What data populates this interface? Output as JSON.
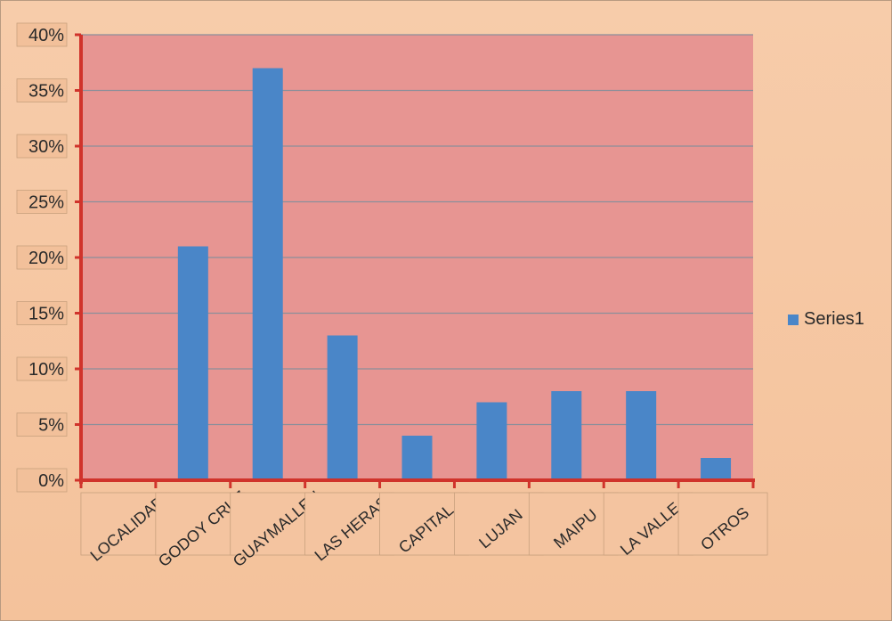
{
  "chart_data": {
    "type": "bar",
    "categories": [
      "LOCALIDAD",
      "GODOY CRUZ",
      "GUAYMALLEN",
      "LAS HERAS",
      "CAPITAL",
      "LUJAN",
      "MAIPU",
      "LA VALLE",
      "OTROS"
    ],
    "series": [
      {
        "name": "Series1",
        "values": [
          0,
          21,
          37,
          13,
          4,
          7,
          8,
          8,
          2
        ]
      }
    ],
    "value_unit": "percent",
    "ylim": [
      0,
      40
    ],
    "yticks": [
      0,
      5,
      10,
      15,
      20,
      25,
      30,
      35,
      40
    ],
    "ytick_labels": [
      "0%",
      "5%",
      "10%",
      "15%",
      "20%",
      "25%",
      "30%",
      "35%",
      "40%"
    ],
    "grid": true,
    "legend": "right",
    "title": "",
    "xlabel": "",
    "ylabel": "",
    "colors": {
      "bar": "#4a86c8",
      "plot_background": "#e79592",
      "axis": "#d0332b",
      "gridline": "#8a8f9a",
      "page_background": "#f6c9a3"
    }
  }
}
